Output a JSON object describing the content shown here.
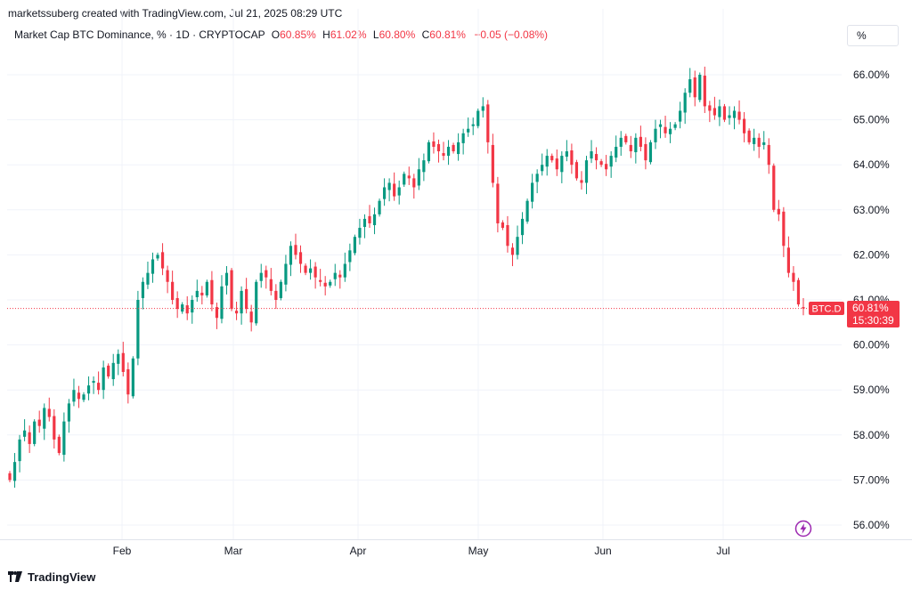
{
  "credit": "marketssuberg created with TradingView.com, Jul 21, 2025 08:29 UTC",
  "legend": {
    "title": "Market Cap BTC Dominance, % · 1D · CRYPTOCAP",
    "o_label": "O",
    "o_value": "60.85%",
    "h_label": "H",
    "h_value": "61.02%",
    "l_label": "L",
    "l_value": "60.80%",
    "c_label": "C",
    "c_value": "60.81%",
    "change": "−0.05 (−0.08%)"
  },
  "scale_button": "%",
  "brand": "TradingView",
  "price_tag": {
    "symbol": "BTC.D",
    "price": "60.81%",
    "countdown": "15:30:39"
  },
  "colors": {
    "up": "#089981",
    "down": "#f23645",
    "grid": "#f0f3fa",
    "last_line": "#f23645"
  },
  "icons": {
    "logo": "tradingview-logo-icon",
    "bolt": "lightning-icon"
  },
  "chart_data": {
    "type": "candlestick",
    "y_axis_ticks": [
      "66.00%",
      "65.00%",
      "64.00%",
      "63.00%",
      "62.00%",
      "61.00%",
      "60.00%",
      "59.00%",
      "58.00%",
      "57.00%",
      "56.00%"
    ],
    "x_axis_ticks": [
      "Feb",
      "Mar",
      "Apr",
      "May",
      "Jun",
      "Jul"
    ],
    "ylim": [
      55.5,
      66.5
    ],
    "last_value": 60.81,
    "series_close": [
      57.0,
      57.4,
      57.9,
      58.1,
      57.8,
      58.3,
      58.2,
      58.6,
      58.4,
      57.9,
      57.6,
      58.3,
      58.7,
      59.0,
      58.8,
      58.9,
      59.1,
      59.2,
      59.0,
      59.5,
      59.3,
      59.6,
      59.8,
      59.4,
      58.9,
      59.7,
      61.0,
      61.4,
      61.6,
      61.9,
      62.0,
      61.7,
      61.4,
      61.0,
      60.8,
      60.9,
      60.7,
      61.0,
      61.2,
      61.1,
      61.4,
      60.9,
      60.6,
      61.3,
      61.6,
      60.8,
      60.7,
      61.2,
      60.8,
      60.5,
      61.4,
      61.6,
      61.5,
      61.2,
      61.0,
      61.4,
      61.8,
      62.2,
      62.0,
      61.8,
      61.6,
      61.7,
      61.5,
      61.4,
      61.3,
      61.4,
      61.6,
      61.5,
      61.8,
      62.1,
      62.4,
      62.6,
      62.8,
      62.7,
      62.9,
      63.2,
      63.5,
      63.6,
      63.3,
      63.5,
      63.8,
      63.7,
      63.5,
      63.9,
      64.1,
      64.5,
      64.4,
      64.3,
      64.2,
      64.4,
      64.3,
      64.5,
      64.7,
      64.8,
      64.9,
      65.2,
      65.3,
      64.5,
      63.6,
      62.7,
      62.6,
      62.2,
      62.0,
      62.4,
      62.8,
      63.2,
      63.6,
      63.8,
      64.0,
      64.2,
      64.1,
      63.9,
      64.2,
      64.3,
      64.0,
      63.7,
      63.6,
      64.1,
      64.3,
      64.1,
      64.0,
      63.9,
      64.2,
      64.4,
      64.6,
      64.5,
      64.3,
      64.6,
      64.4,
      64.1,
      64.5,
      64.8,
      64.9,
      64.7,
      64.8,
      64.9,
      65.2,
      65.6,
      65.9,
      65.5,
      66.0,
      65.3,
      65.2,
      65.1,
      65.3,
      65.0,
      65.1,
      65.2,
      65.0,
      64.7,
      64.5,
      64.6,
      64.4,
      64.5,
      64.0,
      63.0,
      62.9,
      62.2,
      61.6,
      61.4,
      60.9,
      60.81
    ]
  }
}
